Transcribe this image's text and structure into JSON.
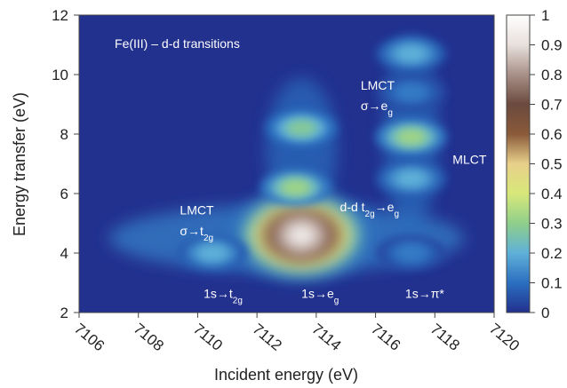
{
  "chart_data": {
    "type": "heatmap",
    "title": "",
    "xlabel": "Incident energy (eV)",
    "ylabel": "Energy transfer (eV)",
    "xlim": [
      7106,
      7120
    ],
    "ylim": [
      2,
      12
    ],
    "x_ticks": [
      "7106",
      "7108",
      "7110",
      "7112",
      "7114",
      "7116",
      "7118",
      "7120"
    ],
    "y_ticks": [
      "2",
      "4",
      "6",
      "8",
      "10",
      "12"
    ],
    "colorbar": {
      "range": [
        0,
        1
      ],
      "ticks": [
        "0",
        "0.1",
        "0.2",
        "0.3",
        "0.4",
        "0.5",
        "0.6",
        "0.7",
        "0.8",
        "0.9",
        "1"
      ],
      "colors": [
        "#22308e",
        "#2b6fc0",
        "#5fb0d8",
        "#8fcf8a",
        "#d8e87a",
        "#e8d08a",
        "#8a5a3a",
        "#6b4a3e",
        "#a89088",
        "#e8e0dc",
        "#ffffff"
      ]
    },
    "features": [
      {
        "x": 7113.5,
        "y": 4.6,
        "intensity": 1.0
      },
      {
        "x": 7113.3,
        "y": 6.2,
        "intensity": 0.32
      },
      {
        "x": 7113.5,
        "y": 8.2,
        "intensity": 0.28
      },
      {
        "x": 7110.5,
        "y": 4.0,
        "intensity": 0.2
      },
      {
        "x": 7117.2,
        "y": 7.9,
        "intensity": 0.32
      },
      {
        "x": 7117.2,
        "y": 6.5,
        "intensity": 0.2
      },
      {
        "x": 7117.2,
        "y": 10.7,
        "intensity": 0.2
      },
      {
        "x": 7117.2,
        "y": 4.0,
        "intensity": 0.12
      },
      {
        "x": 7117.2,
        "y": 9.4,
        "intensity": 0.12
      }
    ],
    "annotations": [
      {
        "text": "Fe(III) – d-d transitions",
        "x": 7107.2,
        "y": 10.9
      },
      {
        "text": "LMCT",
        "x": 7115.5,
        "y": 9.5
      },
      {
        "text": "σ→e",
        "sub": "g",
        "x": 7115.5,
        "y": 8.8
      },
      {
        "text": "MLCT",
        "x": 7118.6,
        "y": 7.0
      },
      {
        "text": "d-d t",
        "sub": "2g",
        "tail": "→e",
        "sub2": "g",
        "x": 7114.8,
        "y": 5.4
      },
      {
        "text": "LMCT",
        "x": 7109.4,
        "y": 5.3
      },
      {
        "text": "σ→t",
        "sub": "2g",
        "x": 7109.4,
        "y": 4.6
      },
      {
        "text": "1s→t",
        "sub": "2g",
        "x": 7110.2,
        "y": 2.5
      },
      {
        "text": "1s→e",
        "sub": "g",
        "x": 7113.5,
        "y": 2.5
      },
      {
        "text": "1s→π*",
        "x": 7117.0,
        "y": 2.5
      }
    ]
  }
}
